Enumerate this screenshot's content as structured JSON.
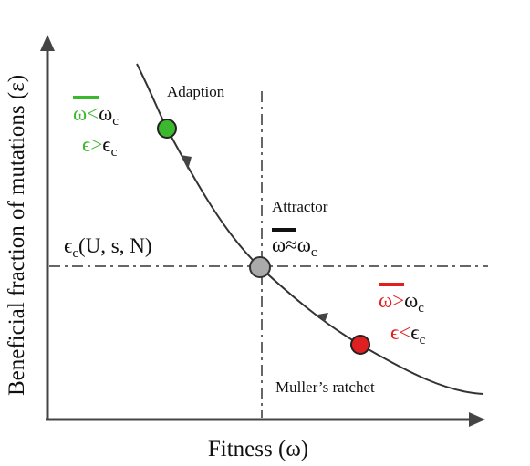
{
  "axes": {
    "y_label": "Beneficial fraction of mutations (ε)",
    "x_label": "Fitness (ω)"
  },
  "threshold": {
    "symbol": "ϵ",
    "sub": "c",
    "args": "(U, s, N)"
  },
  "regions": [
    {
      "label": "Adaption",
      "fitness": {
        "bar": "ω",
        "relation": "<",
        "rhs": "ω",
        "sub": "c"
      },
      "epsilon": {
        "lhs": "ϵ",
        "relation": ">",
        "rhs": "ϵ",
        "sub": "c"
      }
    },
    {
      "label": "Attractor",
      "fitness": {
        "bar": "ω",
        "relation": "≈",
        "rhs": "ω",
        "sub": "c"
      }
    },
    {
      "label": "Muller’s ratchet",
      "fitness": {
        "bar": "ω",
        "relation": ">",
        "rhs": "ω",
        "sub": "c"
      },
      "epsilon": {
        "lhs": "ϵ",
        "relation": "<",
        "rhs": "ϵ",
        "sub": "c"
      }
    }
  ]
}
